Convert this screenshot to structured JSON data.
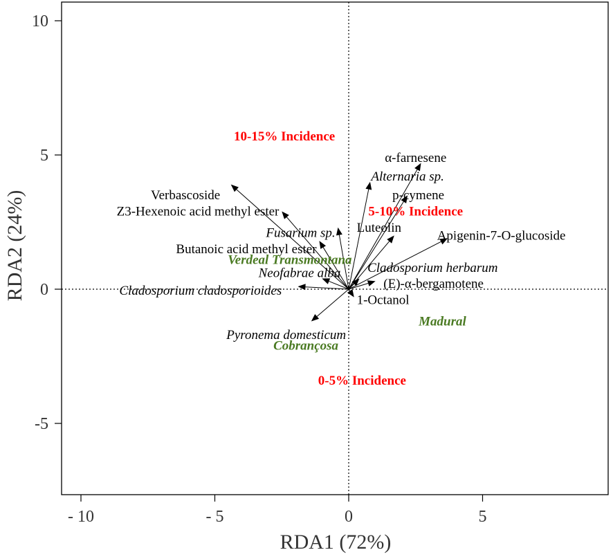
{
  "chart_data": {
    "type": "scatter",
    "subtype": "rda-biplot",
    "xlabel": "RDA1 (72%)",
    "ylabel": "RDA2 (24%)",
    "xlim": [
      -10.8,
      9.5
    ],
    "ylim": [
      -7.6,
      10.5
    ],
    "x_ticks": [
      {
        "v": -10,
        "label": "- 10"
      },
      {
        "v": -5,
        "label": "- 5"
      },
      {
        "v": 0,
        "label": "0"
      },
      {
        "v": 5,
        "label": "5"
      }
    ],
    "y_ticks": [
      {
        "v": 10,
        "label": "10"
      },
      {
        "v": 5,
        "label": "5"
      },
      {
        "v": 0,
        "label": "0"
      },
      {
        "v": -5,
        "label": "-5"
      }
    ],
    "zero_lines": true,
    "arrows": [
      {
        "name": "α-farnesene",
        "x": 2.7,
        "y": 4.7,
        "lx": 2.5,
        "ly": 4.9,
        "anchor": "middle",
        "italic": false
      },
      {
        "name": "Alternaria sp.",
        "x": 0.8,
        "y": 4.0,
        "lx": 2.2,
        "ly": 4.2,
        "anchor": "middle",
        "italic": true
      },
      {
        "name": "p-cymene",
        "x": 2.2,
        "y": 3.5,
        "lx": 2.6,
        "ly": 3.5,
        "anchor": "middle",
        "italic": false
      },
      {
        "name": "Luteolin",
        "x": 1.7,
        "y": 2.0,
        "lx": 0.3,
        "ly": 2.3,
        "anchor": "start",
        "italic": false
      },
      {
        "name": "Apigenin-7-O-glucoside",
        "x": 3.7,
        "y": 1.9,
        "lx": 3.3,
        "ly": 2.0,
        "anchor": "start",
        "italic": false
      },
      {
        "name": "Cladosporium herbarum",
        "x": 0.4,
        "y": 0.4,
        "lx": 0.7,
        "ly": 0.8,
        "anchor": "start",
        "italic": true
      },
      {
        "name": "(E)-α-bergamotene",
        "x": 1.0,
        "y": 0.3,
        "lx": 1.3,
        "ly": 0.2,
        "anchor": "start",
        "italic": false
      },
      {
        "name": "1-Octanol",
        "x": 0.2,
        "y": -0.3,
        "lx": 0.3,
        "ly": -0.4,
        "anchor": "start",
        "italic": false
      },
      {
        "name": "Verbascoside",
        "x": -4.4,
        "y": 3.9,
        "lx": -4.8,
        "ly": 3.5,
        "anchor": "end",
        "italic": false
      },
      {
        "name": "Z3-Hexenoic acid methyl ester",
        "x": -2.5,
        "y": 2.9,
        "lx": -2.6,
        "ly": 2.9,
        "anchor": "end",
        "italic": false
      },
      {
        "name": "Fusarium sp.",
        "x": -0.4,
        "y": 2.3,
        "lx": -0.5,
        "ly": 2.1,
        "anchor": "end",
        "italic": true
      },
      {
        "name": "Butanoic acid methyl ester",
        "x": -1.1,
        "y": 1.8,
        "lx": -1.2,
        "ly": 1.5,
        "anchor": "end",
        "italic": false
      },
      {
        "name": "Neofabrae alba",
        "x": -1.0,
        "y": 0.4,
        "lx": -0.3,
        "ly": 0.6,
        "anchor": "end",
        "italic": true
      },
      {
        "name": "Cladosporium cladosporioides",
        "x": -1.9,
        "y": 0.1,
        "lx": -2.5,
        "ly": -0.05,
        "anchor": "end",
        "italic": true
      },
      {
        "name": "Pyronema domesticum",
        "x": -1.4,
        "y": -1.2,
        "lx": -0.1,
        "ly": -1.7,
        "anchor": "end",
        "italic": true
      }
    ],
    "cultivars": [
      {
        "name": "Verdeal Transmontana",
        "x": -2.2,
        "y": 1.1
      },
      {
        "name": "Madural",
        "x": 3.5,
        "y": -1.2
      },
      {
        "name": "Cobrançosa",
        "x": -1.6,
        "y": -2.1
      }
    ],
    "incidence": [
      {
        "name": "10-15% Incidence",
        "x": -2.4,
        "y": 5.7
      },
      {
        "name": "5-10% Incidence",
        "x": 2.5,
        "y": 2.9
      },
      {
        "name": "0-5% Incidence",
        "x": 0.5,
        "y": -3.4
      }
    ],
    "colors": {
      "arrow": "#000000",
      "cultivar": "#4a7a22",
      "incidence": "#ff0000",
      "axis": "#333333"
    }
  }
}
